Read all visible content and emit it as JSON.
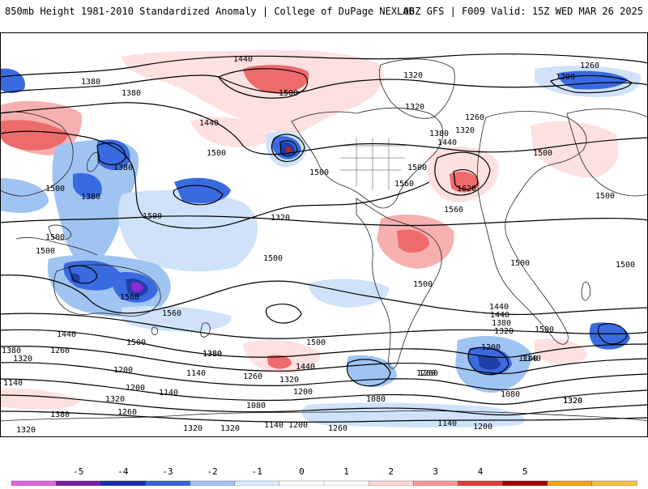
{
  "header": {
    "left_title": "850mb Height 1981-2010 Standardized Anomaly | College of DuPage NEXLAB",
    "right_title": "06Z GFS | F009 Valid: 15Z WED MAR 26 2025"
  },
  "contour_labels": [
    {
      "text": "1380"
    },
    {
      "text": "1380"
    },
    {
      "text": "1440"
    },
    {
      "text": "1500"
    },
    {
      "text": "1320"
    },
    {
      "text": "1260"
    },
    {
      "text": "1200"
    },
    {
      "text": "1260"
    },
    {
      "text": "1320"
    },
    {
      "text": "1380"
    },
    {
      "text": "1440"
    },
    {
      "text": "1500"
    },
    {
      "text": "1500"
    },
    {
      "text": "1440"
    },
    {
      "text": "1500"
    },
    {
      "text": "1500"
    },
    {
      "text": "1500"
    },
    {
      "text": "1620"
    },
    {
      "text": "1560"
    },
    {
      "text": "1560"
    },
    {
      "text": "1500"
    },
    {
      "text": "1500"
    },
    {
      "text": "1500"
    },
    {
      "text": "1500"
    },
    {
      "text": "1560"
    },
    {
      "text": "1500"
    },
    {
      "text": "1560"
    },
    {
      "text": "1440"
    },
    {
      "text": "1500"
    },
    {
      "text": "1380"
    },
    {
      "text": "1440"
    },
    {
      "text": "1500"
    },
    {
      "text": "1500"
    },
    {
      "text": "1500"
    },
    {
      "text": "1440"
    },
    {
      "text": "1380"
    },
    {
      "text": "1320"
    },
    {
      "text": "1440"
    },
    {
      "text": "1380"
    },
    {
      "text": "1320"
    },
    {
      "text": "1260"
    },
    {
      "text": "1200"
    },
    {
      "text": "1140"
    },
    {
      "text": "1140"
    },
    {
      "text": "1200"
    },
    {
      "text": "1260"
    },
    {
      "text": "1380"
    },
    {
      "text": "1320"
    },
    {
      "text": "1200"
    },
    {
      "text": "1140"
    },
    {
      "text": "1080"
    },
    {
      "text": "1320"
    },
    {
      "text": "1260"
    },
    {
      "text": "1080"
    },
    {
      "text": "1380"
    },
    {
      "text": "1320"
    },
    {
      "text": "1080"
    },
    {
      "text": "1140"
    },
    {
      "text": "1320"
    },
    {
      "text": "1320"
    },
    {
      "text": "1320"
    },
    {
      "text": "1260"
    },
    {
      "text": "1200"
    },
    {
      "text": "1140"
    },
    {
      "text": "1140"
    },
    {
      "text": "1200"
    },
    {
      "text": "1260"
    },
    {
      "text": "1320"
    },
    {
      "text": "1380"
    },
    {
      "text": "1200"
    },
    {
      "text": "1140"
    },
    {
      "text": "1260"
    },
    {
      "text": "1320"
    },
    {
      "text": "1500"
    },
    {
      "text": "1500"
    },
    {
      "text": "1380"
    },
    {
      "text": "1320"
    }
  ],
  "colorbar": {
    "tick_labels": [
      "-5",
      "-4",
      "-3",
      "-2",
      "-1",
      "0",
      "1",
      "2",
      "3",
      "4",
      "5"
    ],
    "colors": [
      "#e066e0",
      "#7a1fa2",
      "#1a2fa8",
      "#3a63d8",
      "#9ec3f4",
      "#dbe9fb",
      "#ffffff",
      "#ffffff",
      "#ffd6d6",
      "#f59a9a",
      "#e03c3c",
      "#a30000",
      "#f3a21c",
      "#f5c04a"
    ]
  },
  "anomaly_colors": {
    "strong_neg": "#1f3ea8",
    "neg": "#3a6ae0",
    "weak_neg": "#9fc4f2",
    "very_weak_neg": "#cfe2f9",
    "very_weak_pos": "#fde0e0",
    "weak_pos": "#f6b0b0",
    "pos": "#ee6b6b",
    "strong_pos": "#c81c1c",
    "extreme_neg": "#8a2bd1"
  }
}
